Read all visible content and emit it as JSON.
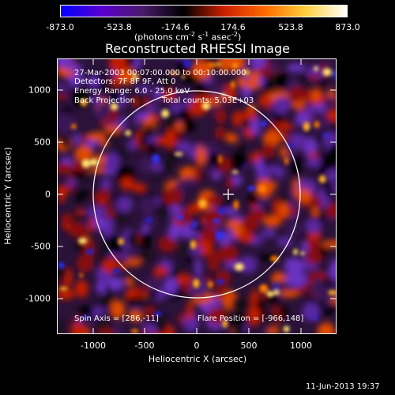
{
  "colorbar": {
    "ticks": [
      "-873.0",
      "-523.8",
      "-174.6",
      "174.6",
      "523.8",
      "873.0"
    ],
    "unit_prefix": "(photons cm",
    "unit_sup1": "-2",
    "unit_mid": " s",
    "unit_sup2": "-1",
    "unit_mid2": " asec",
    "unit_sup3": "-2",
    "unit_suffix": ")",
    "colors": [
      "#0000ff",
      "#5a00d0",
      "#4a1a6a",
      "#000000",
      "#cc2000",
      "#ff6a00",
      "#ffd040",
      "#ffffff"
    ]
  },
  "title": "Reconstructed RHESSI Image",
  "info": {
    "time_range": "27-Mar-2003 00:07:00.000 to 00:10:00.000",
    "detectors": "Detectors: 7F 8F 9F, Att 0",
    "energy": "Energy Range: 6.0 - 25.0 keV",
    "method": "Back Projection",
    "counts": "Total counts: 5.03E+03",
    "spin_axis": "Spin Axis = [286,-11]",
    "flare_position": "Flare Position = [-966,148]"
  },
  "axes": {
    "xlabel": "Heliocentric X (arcsec)",
    "ylabel": "Heliocentric Y (arcsec)",
    "xticks": [
      "-1000",
      "-500",
      "0",
      "500",
      "1000"
    ],
    "yticks": [
      "1000",
      "500",
      "0",
      "-500",
      "-1000"
    ]
  },
  "timestamp": "11-Jun-2013 19:37"
}
